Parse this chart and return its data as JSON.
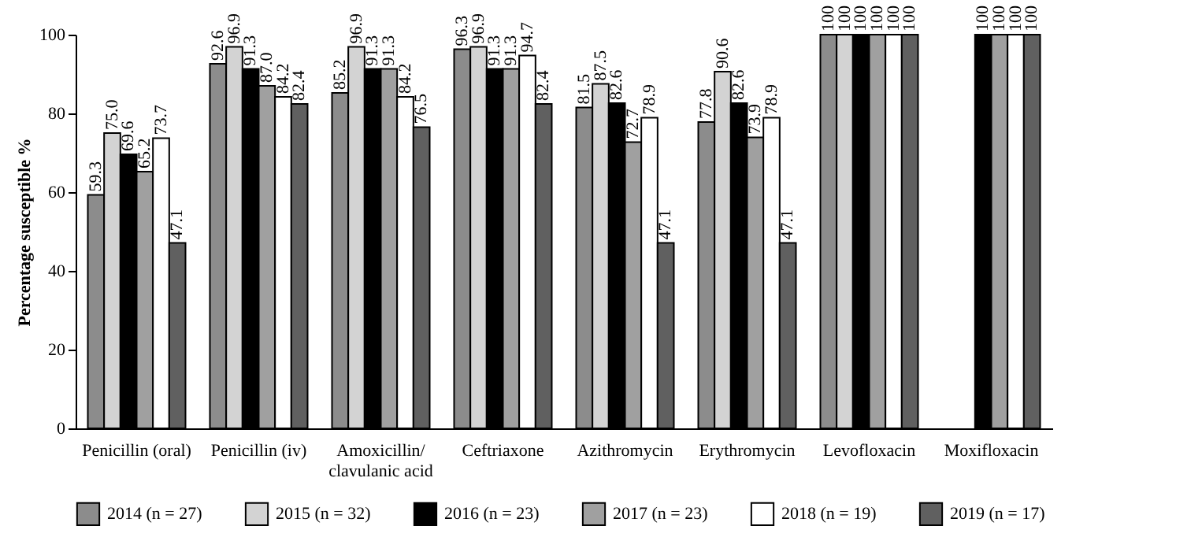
{
  "chart_data": {
    "type": "bar",
    "ylabel": "Percentage susceptible %",
    "categories": [
      "Penicillin (oral)",
      "Penicillin (iv)",
      "Amoxicillin/\nclavulanic acid",
      "Ceftriaxone",
      "Azithromycin",
      "Erythromycin",
      "Levofloxacin",
      "Moxifloxacin"
    ],
    "series": [
      {
        "name": "2014 (n = 27)",
        "color": "#8c8c8c",
        "values": [
          59.3,
          92.6,
          85.2,
          96.3,
          81.5,
          77.8,
          100,
          null
        ],
        "value_labels": [
          "59.3",
          "92.6",
          "85.2",
          "96.3",
          "81.5",
          "77.8",
          "100",
          null
        ]
      },
      {
        "name": "2015 (n = 32)",
        "color": "#d3d3d3",
        "values": [
          75.0,
          96.9,
          96.9,
          96.9,
          87.5,
          90.6,
          100,
          null
        ],
        "value_labels": [
          "75.0",
          "96.9",
          "96.9",
          "96.9",
          "87.5",
          "90.6",
          "100",
          null
        ]
      },
      {
        "name": "2016 (n = 23)",
        "color": "#000000",
        "values": [
          69.6,
          91.3,
          91.3,
          91.3,
          82.6,
          82.6,
          100,
          100
        ],
        "value_labels": [
          "69.6",
          "91.3",
          "91.3",
          "91.3",
          "82.6",
          "82.6",
          "100",
          "100"
        ]
      },
      {
        "name": "2017 (n = 23)",
        "color": "#a0a0a0",
        "values": [
          65.2,
          87.0,
          91.3,
          91.3,
          72.7,
          73.9,
          100,
          100
        ],
        "value_labels": [
          "65.2",
          "87.0",
          "91.3",
          "91.3",
          "72.7",
          "73.9",
          "100",
          "100"
        ]
      },
      {
        "name": "2018 (n = 19)",
        "color": "#ffffff",
        "values": [
          73.7,
          84.2,
          84.2,
          94.7,
          78.9,
          78.9,
          100,
          100
        ],
        "value_labels": [
          "73.7",
          "84.2",
          "84.2",
          "94.7",
          "78.9",
          "78.9",
          "100",
          "100"
        ]
      },
      {
        "name": "2019 (n = 17)",
        "color": "#606060",
        "values": [
          47.1,
          82.4,
          76.5,
          82.4,
          47.1,
          47.1,
          100,
          100
        ],
        "value_labels": [
          "47.1",
          "82.4",
          "76.5",
          "82.4",
          "47.1",
          "47.1",
          "100",
          "100"
        ]
      }
    ],
    "ylim": [
      0,
      100
    ],
    "yticks": [
      0,
      20,
      40,
      60,
      80,
      100
    ],
    "grid": false,
    "legend": "bottom"
  }
}
